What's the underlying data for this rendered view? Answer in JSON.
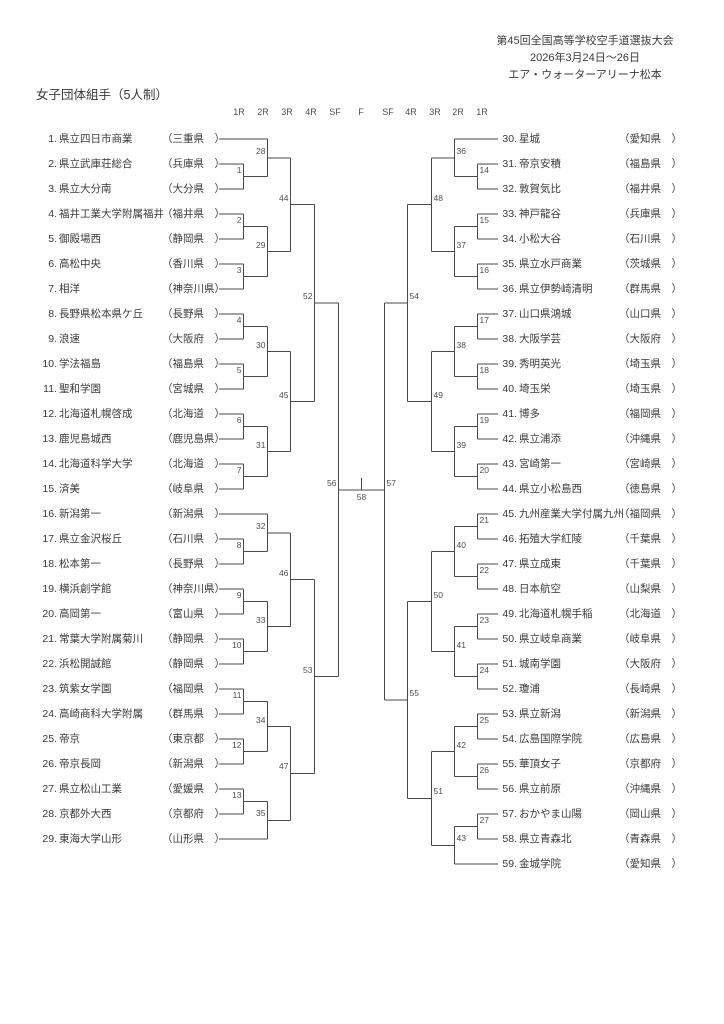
{
  "header": {
    "event": "第45回全国高等学校空手道選抜大会",
    "dates": "2026年3月24日～26日",
    "venue": "エア・ウォーターアリーナ松本"
  },
  "section_title": "女子団体組手（5人制）",
  "round_labels": [
    "1R",
    "2R",
    "3R",
    "4R",
    "SF",
    "F",
    "SF",
    "4R",
    "3R",
    "2R",
    "1R"
  ],
  "colors": {
    "ink": "#3a3a3a",
    "line": "#474747",
    "muted": "#4f4f4f"
  },
  "teams": [
    {
      "n": 1,
      "name": "県立四日市商業",
      "pref": "三重県"
    },
    {
      "n": 2,
      "name": "県立武庫荘総合",
      "pref": "兵庫県"
    },
    {
      "n": 3,
      "name": "県立大分南",
      "pref": "大分県"
    },
    {
      "n": 4,
      "name": "福井工業大学附属福井",
      "pref": "福井県"
    },
    {
      "n": 5,
      "name": "御殿場西",
      "pref": "静岡県"
    },
    {
      "n": 6,
      "name": "高松中央",
      "pref": "香川県"
    },
    {
      "n": 7,
      "name": "相洋",
      "pref": "神奈川県"
    },
    {
      "n": 8,
      "name": "長野県松本県ケ丘",
      "pref": "長野県"
    },
    {
      "n": 9,
      "name": "浪速",
      "pref": "大阪府"
    },
    {
      "n": 10,
      "name": "学法福島",
      "pref": "福島県"
    },
    {
      "n": 11,
      "name": "聖和学園",
      "pref": "宮城県"
    },
    {
      "n": 12,
      "name": "北海道札幌啓成",
      "pref": "北海道"
    },
    {
      "n": 13,
      "name": "鹿児島城西",
      "pref": "鹿児島県"
    },
    {
      "n": 14,
      "name": "北海道科学大学",
      "pref": "北海道"
    },
    {
      "n": 15,
      "name": "済美",
      "pref": "岐阜県"
    },
    {
      "n": 16,
      "name": "新潟第一",
      "pref": "新潟県"
    },
    {
      "n": 17,
      "name": "県立金沢桜丘",
      "pref": "石川県"
    },
    {
      "n": 18,
      "name": "松本第一",
      "pref": "長野県"
    },
    {
      "n": 19,
      "name": "横浜創学館",
      "pref": "神奈川県"
    },
    {
      "n": 20,
      "name": "高岡第一",
      "pref": "富山県"
    },
    {
      "n": 21,
      "name": "常葉大学附属菊川",
      "pref": "静岡県"
    },
    {
      "n": 22,
      "name": "浜松開誠館",
      "pref": "静岡県"
    },
    {
      "n": 23,
      "name": "筑紫女学園",
      "pref": "福岡県"
    },
    {
      "n": 24,
      "name": "高崎商科大学附属",
      "pref": "群馬県"
    },
    {
      "n": 25,
      "name": "帝京",
      "pref": "東京都"
    },
    {
      "n": 26,
      "name": "帝京長岡",
      "pref": "新潟県"
    },
    {
      "n": 27,
      "name": "県立松山工業",
      "pref": "愛媛県"
    },
    {
      "n": 28,
      "name": "京都外大西",
      "pref": "京都府"
    },
    {
      "n": 29,
      "name": "東海大学山形",
      "pref": "山形県"
    },
    {
      "n": 30,
      "name": "星城",
      "pref": "愛知県"
    },
    {
      "n": 31,
      "name": "帝京安積",
      "pref": "福島県"
    },
    {
      "n": 32,
      "name": "敦賀気比",
      "pref": "福井県"
    },
    {
      "n": 33,
      "name": "神戸龍谷",
      "pref": "兵庫県"
    },
    {
      "n": 34,
      "name": "小松大谷",
      "pref": "石川県"
    },
    {
      "n": 35,
      "name": "県立水戸商業",
      "pref": "茨城県"
    },
    {
      "n": 36,
      "name": "県立伊勢崎清明",
      "pref": "群馬県"
    },
    {
      "n": 37,
      "name": "山口県鴻城",
      "pref": "山口県"
    },
    {
      "n": 38,
      "name": "大阪学芸",
      "pref": "大阪府"
    },
    {
      "n": 39,
      "name": "秀明英光",
      "pref": "埼玉県"
    },
    {
      "n": 40,
      "name": "埼玉栄",
      "pref": "埼玉県"
    },
    {
      "n": 41,
      "name": "博多",
      "pref": "福岡県"
    },
    {
      "n": 42,
      "name": "県立浦添",
      "pref": "沖縄県"
    },
    {
      "n": 43,
      "name": "宮崎第一",
      "pref": "宮崎県"
    },
    {
      "n": 44,
      "name": "県立小松島西",
      "pref": "徳島県"
    },
    {
      "n": 45,
      "name": "九州産業大学付属九州",
      "pref": "福岡県"
    },
    {
      "n": 46,
      "name": "拓殖大学紅陵",
      "pref": "千葉県"
    },
    {
      "n": 47,
      "name": "県立成東",
      "pref": "千葉県"
    },
    {
      "n": 48,
      "name": "日本航空",
      "pref": "山梨県"
    },
    {
      "n": 49,
      "name": "北海道札幌手稲",
      "pref": "北海道"
    },
    {
      "n": 50,
      "name": "県立岐阜商業",
      "pref": "岐阜県"
    },
    {
      "n": 51,
      "name": "城南学園",
      "pref": "大阪府"
    },
    {
      "n": 52,
      "name": "瓊浦",
      "pref": "長崎県"
    },
    {
      "n": 53,
      "name": "県立新潟",
      "pref": "新潟県"
    },
    {
      "n": 54,
      "name": "広島国際学院",
      "pref": "広島県"
    },
    {
      "n": 55,
      "name": "華頂女子",
      "pref": "京都府"
    },
    {
      "n": 56,
      "name": "県立前原",
      "pref": "沖縄県"
    },
    {
      "n": 57,
      "name": "おかやま山陽",
      "pref": "岡山県"
    },
    {
      "n": 58,
      "name": "県立青森北",
      "pref": "青森県"
    },
    {
      "n": 59,
      "name": "金城学院",
      "pref": "愛知県"
    }
  ],
  "matches": [
    {
      "no": 1,
      "col": "L1",
      "a": "T2",
      "b": "T3"
    },
    {
      "no": 2,
      "col": "L1",
      "a": "T4",
      "b": "T5"
    },
    {
      "no": 3,
      "col": "L1",
      "a": "T6",
      "b": "T7"
    },
    {
      "no": 4,
      "col": "L1",
      "a": "T8",
      "b": "T9"
    },
    {
      "no": 5,
      "col": "L1",
      "a": "T10",
      "b": "T11"
    },
    {
      "no": 6,
      "col": "L1",
      "a": "T12",
      "b": "T13"
    },
    {
      "no": 7,
      "col": "L1",
      "a": "T14",
      "b": "T15"
    },
    {
      "no": 8,
      "col": "L1",
      "a": "T17",
      "b": "T18"
    },
    {
      "no": 9,
      "col": "L1",
      "a": "T19",
      "b": "T20"
    },
    {
      "no": 10,
      "col": "L1",
      "a": "T21",
      "b": "T22"
    },
    {
      "no": 11,
      "col": "L1",
      "a": "T23",
      "b": "T24"
    },
    {
      "no": 12,
      "col": "L1",
      "a": "T25",
      "b": "T26"
    },
    {
      "no": 13,
      "col": "L1",
      "a": "T27",
      "b": "T28"
    },
    {
      "no": 14,
      "col": "R1",
      "a": "T31",
      "b": "T32"
    },
    {
      "no": 15,
      "col": "R1",
      "a": "T33",
      "b": "T34"
    },
    {
      "no": 16,
      "col": "R1",
      "a": "T35",
      "b": "T36"
    },
    {
      "no": 17,
      "col": "R1",
      "a": "T37",
      "b": "T38"
    },
    {
      "no": 18,
      "col": "R1",
      "a": "T39",
      "b": "T40"
    },
    {
      "no": 19,
      "col": "R1",
      "a": "T41",
      "b": "T42"
    },
    {
      "no": 20,
      "col": "R1",
      "a": "T43",
      "b": "T44"
    },
    {
      "no": 21,
      "col": "R1",
      "a": "T45",
      "b": "T46"
    },
    {
      "no": 22,
      "col": "R1",
      "a": "T47",
      "b": "T48"
    },
    {
      "no": 23,
      "col": "R1",
      "a": "T49",
      "b": "T50"
    },
    {
      "no": 24,
      "col": "R1",
      "a": "T51",
      "b": "T52"
    },
    {
      "no": 25,
      "col": "R1",
      "a": "T53",
      "b": "T54"
    },
    {
      "no": 26,
      "col": "R1",
      "a": "T55",
      "b": "T56"
    },
    {
      "no": 27,
      "col": "R1",
      "a": "T57",
      "b": "T58"
    },
    {
      "no": 28,
      "col": "L2",
      "a": "T1",
      "b": "M1"
    },
    {
      "no": 29,
      "col": "L2",
      "a": "M2",
      "b": "M3"
    },
    {
      "no": 30,
      "col": "L2",
      "a": "M4",
      "b": "M5"
    },
    {
      "no": 31,
      "col": "L2",
      "a": "M6",
      "b": "M7"
    },
    {
      "no": 32,
      "col": "L2",
      "a": "T16",
      "b": "M8"
    },
    {
      "no": 33,
      "col": "L2",
      "a": "M9",
      "b": "M10"
    },
    {
      "no": 34,
      "col": "L2",
      "a": "M11",
      "b": "M12"
    },
    {
      "no": 35,
      "col": "L2",
      "a": "M13",
      "b": "T29"
    },
    {
      "no": 36,
      "col": "R2",
      "a": "T30",
      "b": "M14"
    },
    {
      "no": 37,
      "col": "R2",
      "a": "M15",
      "b": "M16"
    },
    {
      "no": 38,
      "col": "R2",
      "a": "M17",
      "b": "M18"
    },
    {
      "no": 39,
      "col": "R2",
      "a": "M19",
      "b": "M20"
    },
    {
      "no": 40,
      "col": "R2",
      "a": "M21",
      "b": "M22"
    },
    {
      "no": 41,
      "col": "R2",
      "a": "M23",
      "b": "M24"
    },
    {
      "no": 42,
      "col": "R2",
      "a": "M25",
      "b": "M26"
    },
    {
      "no": 43,
      "col": "R2",
      "a": "M27",
      "b": "T59"
    },
    {
      "no": 44,
      "col": "L3",
      "a": "M28",
      "b": "M29"
    },
    {
      "no": 45,
      "col": "L3",
      "a": "M30",
      "b": "M31"
    },
    {
      "no": 46,
      "col": "L3",
      "a": "M32",
      "b": "M33"
    },
    {
      "no": 47,
      "col": "L3",
      "a": "M34",
      "b": "M35"
    },
    {
      "no": 48,
      "col": "R3",
      "a": "M36",
      "b": "M37"
    },
    {
      "no": 49,
      "col": "R3",
      "a": "M38",
      "b": "M39"
    },
    {
      "no": 50,
      "col": "R3",
      "a": "M40",
      "b": "M41"
    },
    {
      "no": 51,
      "col": "R3",
      "a": "M42",
      "b": "M43"
    },
    {
      "no": 52,
      "col": "L4",
      "a": "M44",
      "b": "M45"
    },
    {
      "no": 53,
      "col": "L4",
      "a": "M46",
      "b": "M47"
    },
    {
      "no": 54,
      "col": "R4",
      "a": "M48",
      "b": "M49"
    },
    {
      "no": 55,
      "col": "R4",
      "a": "M50",
      "b": "M51"
    },
    {
      "no": 56,
      "col": "LS",
      "a": "M52",
      "b": "M53"
    },
    {
      "no": 57,
      "col": "RS",
      "a": "M54",
      "b": "M55"
    },
    {
      "no": 58,
      "col": "F",
      "a": "M56",
      "b": "M57"
    }
  ]
}
